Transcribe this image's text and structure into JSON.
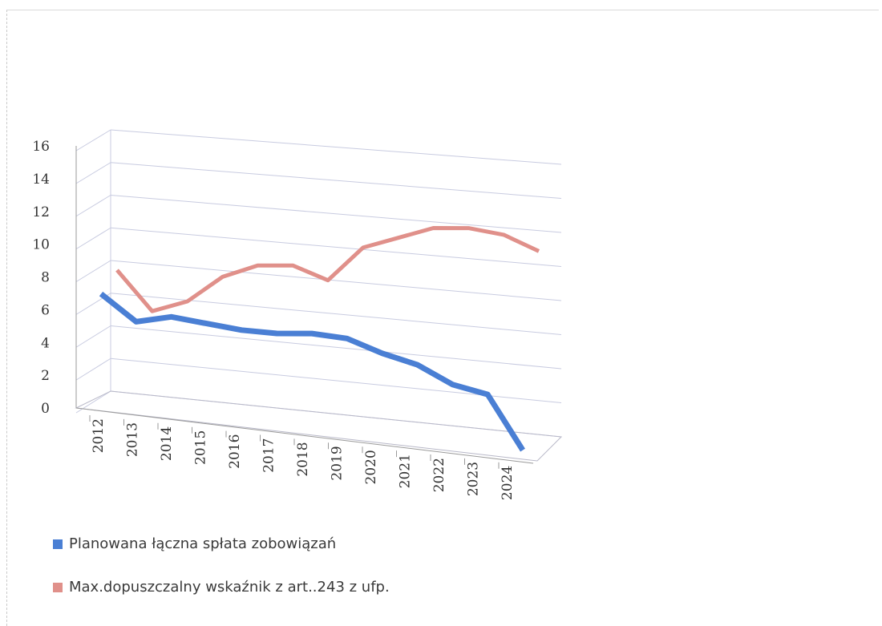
{
  "chart_data": {
    "type": "line",
    "title": "",
    "xlabel": "",
    "ylabel": "",
    "categories": [
      "2012",
      "2013",
      "2014",
      "2015",
      "2016",
      "2017",
      "2018",
      "2019",
      "2020",
      "2021",
      "2022",
      "2023",
      "2024"
    ],
    "ylim": [
      0,
      16
    ],
    "yticks": [
      0,
      2,
      4,
      6,
      8,
      10,
      12,
      14,
      16
    ],
    "grid": true,
    "legend_position": "bottom-left",
    "series": [
      {
        "name": "Planowana łączna spłata zobowiązań",
        "color": "#4a7fd4",
        "values": [
          7.3,
          5.8,
          6.3,
          6.1,
          5.9,
          5.9,
          6.1,
          6.0,
          5.3,
          4.8,
          3.8,
          3.4,
          0.2
        ]
      },
      {
        "name": "Max.dopuszczalny wskaźnik z art..243 z ufp.",
        "color": "#e0908a",
        "values": [
          8.4,
          6.1,
          6.9,
          8.6,
          9.5,
          9.7,
          9.0,
          11.2,
          12.0,
          12.8,
          13.0,
          12.8,
          12.0
        ]
      }
    ]
  }
}
